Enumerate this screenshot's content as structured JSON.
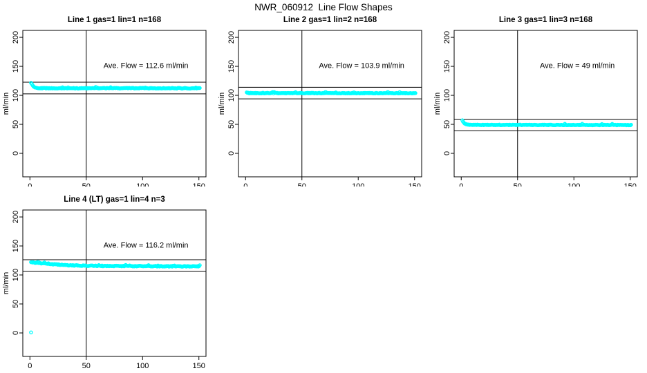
{
  "figure": {
    "title": "NWR_060912  Line Flow Shapes",
    "background": "#ffffff",
    "text_color": "#000000"
  },
  "style": {
    "point_color": "#00ffff",
    "axis_color": "#000000",
    "ref_line_color": "#000000"
  },
  "axes": {
    "ylabel": "ml/min",
    "x_tick_labels": [
      "0",
      "50",
      "100",
      "150"
    ],
    "y_tick_labels": [
      "0",
      "50",
      "100",
      "150",
      "200"
    ],
    "x_tick_values": [
      0,
      50,
      100,
      150
    ],
    "y_tick_values": [
      0,
      50,
      100,
      150,
      200
    ],
    "xlim": [
      -6.3,
      156.3
    ],
    "ylim": [
      -40.5,
      212
    ]
  },
  "chart_data": [
    {
      "type": "scatter",
      "title": "Line 1 gas=1 lin=1 n=168",
      "n": 168,
      "ave_flow_ml_min": 112.6,
      "annotation": {
        "text": "Ave. Flow =  112.6  ml/min",
        "x": 103,
        "y": 150.5
      },
      "vline_x": 50,
      "hlines": [
        122.6,
        102.6
      ],
      "x_range": [
        1,
        151
      ],
      "profile": [
        [
          1,
          122.0
        ],
        [
          1.5,
          120.5
        ],
        [
          2,
          118.5
        ],
        [
          3,
          115.8
        ],
        [
          4,
          114.2
        ],
        [
          5,
          113.3
        ],
        [
          6,
          112.8
        ],
        [
          8,
          112.5
        ],
        [
          12,
          112.4
        ],
        [
          20,
          112.3
        ],
        [
          40,
          112.3
        ],
        [
          60,
          112.4
        ],
        [
          80,
          112.3
        ],
        [
          100,
          112.4
        ],
        [
          120,
          112.3
        ],
        [
          151,
          112.2
        ]
      ],
      "jitter": 0.55,
      "outliers": []
    },
    {
      "type": "scatter",
      "title": "Line 2 gas=1 lin=2 n=168",
      "n": 168,
      "ave_flow_ml_min": 103.9,
      "annotation": {
        "text": "Ave. Flow =  103.9  ml/min",
        "x": 103,
        "y": 150.5
      },
      "vline_x": 50,
      "hlines": [
        113.9,
        93.9
      ],
      "x_range": [
        1,
        151
      ],
      "profile": [
        [
          1,
          105.2
        ],
        [
          2,
          104.4
        ],
        [
          3,
          104.0
        ],
        [
          5,
          103.9
        ],
        [
          10,
          103.8
        ],
        [
          40,
          103.9
        ],
        [
          80,
          103.8
        ],
        [
          120,
          103.8
        ],
        [
          151,
          103.7
        ]
      ],
      "jitter": 0.5,
      "outliers": []
    },
    {
      "type": "scatter",
      "title": "Line 3 gas=1 lin=3 n=168",
      "n": 168,
      "ave_flow_ml_min": 49,
      "annotation": {
        "text": "Ave. Flow =  49  ml/min",
        "x": 103,
        "y": 150.5
      },
      "vline_x": 50,
      "hlines": [
        59,
        39
      ],
      "x_range": [
        1,
        151
      ],
      "profile": [
        [
          1,
          57.0
        ],
        [
          1.5,
          55.5
        ],
        [
          2,
          53.5
        ],
        [
          3,
          51.5
        ],
        [
          4,
          50.3
        ],
        [
          5,
          49.7
        ],
        [
          7,
          49.3
        ],
        [
          10,
          49.1
        ],
        [
          20,
          49.0
        ],
        [
          60,
          49.0
        ],
        [
          100,
          48.9
        ],
        [
          151,
          48.8
        ]
      ],
      "jitter": 0.5,
      "outliers": []
    },
    {
      "type": "scatter",
      "title": "Line 4 (LT) gas=1 lin=4 n=3",
      "n": 3,
      "ave_flow_ml_min": 116.2,
      "annotation": {
        "text": "Ave. Flow =  116.2  ml/min",
        "x": 103,
        "y": 150.5
      },
      "vline_x": 50,
      "hlines": [
        126.2,
        106.2
      ],
      "x_range": [
        1,
        151
      ],
      "profile": [
        [
          1,
          121.8
        ],
        [
          4,
          121.4
        ],
        [
          8,
          120.6
        ],
        [
          12,
          119.8
        ],
        [
          16,
          119.1
        ],
        [
          20,
          118.5
        ],
        [
          25,
          117.8
        ],
        [
          30,
          117.2
        ],
        [
          35,
          116.7
        ],
        [
          40,
          116.4
        ],
        [
          45,
          116.1
        ],
        [
          50,
          115.9
        ],
        [
          60,
          115.7
        ],
        [
          70,
          115.5
        ],
        [
          80,
          115.4
        ],
        [
          90,
          115.3
        ],
        [
          100,
          115.2
        ],
        [
          110,
          115.1
        ],
        [
          120,
          115.0
        ],
        [
          130,
          114.9
        ],
        [
          140,
          114.8
        ],
        [
          151,
          114.7
        ]
      ],
      "jitter": 0.65,
      "outliers": [
        [
          1,
          1
        ]
      ]
    }
  ]
}
